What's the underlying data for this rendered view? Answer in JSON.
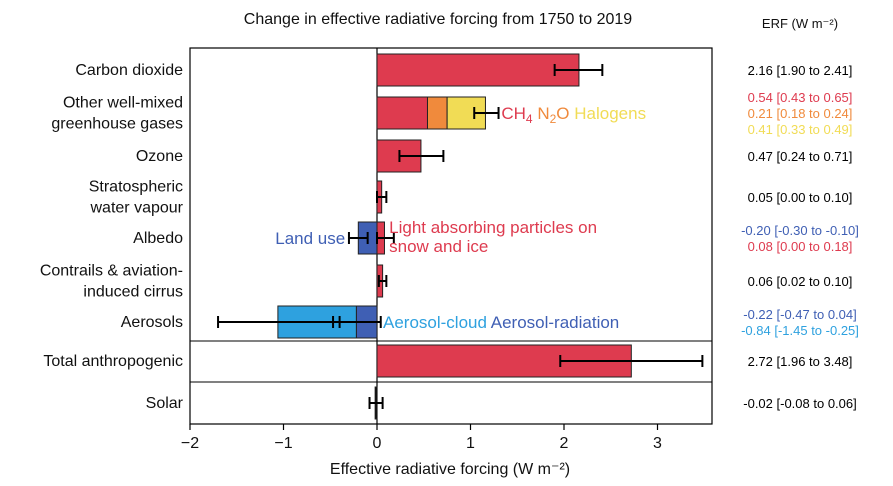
{
  "chart_data": {
    "type": "bar",
    "title": "Change in effective radiative forcing from 1750 to 2019",
    "xlabel": "Effective radiative forcing (W m⁻²)",
    "xlim": [
      -2,
      3.6
    ],
    "xticks": [
      -2,
      -1,
      0,
      1,
      2,
      3
    ],
    "xtick_labels": [
      "−2",
      "−1",
      "0",
      "1",
      "2",
      "3"
    ],
    "erf_header": "ERF (W m⁻²)",
    "colors": {
      "red": "#de3b4f",
      "orange": "#f08a3c",
      "yellow": "#f1dc55",
      "blue": "#3f5fb4",
      "lightblue": "#2ea1df",
      "black": "#000000"
    },
    "categories": [
      {
        "label": [
          "Carbon dioxide"
        ],
        "segments": [
          {
            "from": 0,
            "to": 2.16,
            "color": "red"
          }
        ],
        "error": {
          "center": 2.16,
          "low": 1.9,
          "high": 2.41
        },
        "erf": [
          {
            "text": "2.16 [1.90 to 2.41]",
            "color": "black"
          }
        ]
      },
      {
        "label": [
          "Other well-mixed",
          "greenhouse gases"
        ],
        "segments": [
          {
            "from": 0,
            "to": 0.54,
            "color": "red"
          },
          {
            "from": 0.54,
            "to": 0.75,
            "color": "orange"
          },
          {
            "from": 0.75,
            "to": 1.16,
            "color": "yellow"
          }
        ],
        "error": {
          "center": 1.16,
          "low": 1.04,
          "high": 1.3
        },
        "erf": [
          {
            "text": "0.54 [0.43 to 0.65]",
            "color": "red"
          },
          {
            "text": "0.21 [0.18 to 0.24]",
            "color": "orange"
          },
          {
            "text": "0.41 [0.33 to 0.49]",
            "color": "yellow"
          }
        ]
      },
      {
        "label": [
          "Ozone"
        ],
        "segments": [
          {
            "from": 0,
            "to": 0.47,
            "color": "red"
          }
        ],
        "error": {
          "center": 0.47,
          "low": 0.24,
          "high": 0.71
        },
        "erf": [
          {
            "text": "0.47 [0.24 to 0.71]",
            "color": "black"
          }
        ]
      },
      {
        "label": [
          "Stratospheric",
          "water vapour"
        ],
        "segments": [
          {
            "from": 0,
            "to": 0.05,
            "color": "red"
          }
        ],
        "error": {
          "center": 0.05,
          "low": 0.0,
          "high": 0.1
        },
        "erf": [
          {
            "text": "0.05 [0.00 to 0.10]",
            "color": "black"
          }
        ]
      },
      {
        "label": [
          "Albedo"
        ],
        "segments": [
          {
            "from": -0.2,
            "to": 0,
            "color": "blue"
          },
          {
            "from": 0,
            "to": 0.08,
            "color": "red"
          }
        ],
        "errors": [
          {
            "center": -0.2,
            "low": -0.3,
            "high": -0.1
          },
          {
            "center": 0.08,
            "low": 0.0,
            "high": 0.18
          }
        ],
        "erf": [
          {
            "text": "-0.20 [-0.30 to -0.10]",
            "color": "blue"
          },
          {
            "text": "0.08 [0.00 to 0.18]",
            "color": "red"
          }
        ]
      },
      {
        "label": [
          "Contrails & aviation-",
          "induced cirrus"
        ],
        "segments": [
          {
            "from": 0,
            "to": 0.06,
            "color": "red"
          }
        ],
        "error": {
          "center": 0.06,
          "low": 0.02,
          "high": 0.1
        },
        "erf": [
          {
            "text": "0.06 [0.02 to 0.10]",
            "color": "black"
          }
        ]
      },
      {
        "label": [
          "Aerosols"
        ],
        "segments": [
          {
            "from": -1.06,
            "to": -0.22,
            "color": "lightblue"
          },
          {
            "from": -0.22,
            "to": 0,
            "color": "blue"
          }
        ],
        "errors": [
          {
            "center": -0.22,
            "low": -0.47,
            "high": 0.04
          },
          {
            "center": -1.06,
            "low": -1.7,
            "high": -0.4
          }
        ],
        "erf": [
          {
            "text": "-0.22 [-0.47 to 0.04]",
            "color": "blue"
          },
          {
            "text": "-0.84 [-1.45 to -0.25]",
            "color": "lightblue"
          }
        ]
      },
      {
        "label": [
          "Total anthropogenic"
        ],
        "segments": [
          {
            "from": 0,
            "to": 2.72,
            "color": "red"
          }
        ],
        "error": {
          "center": 2.72,
          "low": 1.96,
          "high": 3.48
        },
        "erf": [
          {
            "text": "2.72 [1.96 to 3.48]",
            "color": "black"
          }
        ]
      },
      {
        "label": [
          "Solar"
        ],
        "segments": [
          {
            "from": -0.02,
            "to": 0,
            "color": "black"
          }
        ],
        "error": {
          "center": -0.02,
          "low": -0.08,
          "high": 0.06
        },
        "erf": [
          {
            "text": "-0.02 [-0.08 to 0.06]",
            "color": "black"
          }
        ]
      }
    ],
    "annotations": [
      {
        "row": 1,
        "parts": [
          {
            "text": "CH",
            "color": "red"
          },
          {
            "text": "4",
            "color": "red",
            "sub": true
          },
          {
            "text": " N",
            "color": "orange"
          },
          {
            "text": "2",
            "color": "orange",
            "sub": true
          },
          {
            "text": "O",
            "color": "orange"
          },
          {
            "text": " Halogens",
            "color": "yellow"
          }
        ]
      },
      {
        "row": 4,
        "lines": [
          "Light absorbing particles on",
          "snow and ice"
        ],
        "color": "red",
        "side": "right"
      },
      {
        "row": 4,
        "lines": [
          "Land use"
        ],
        "color": "blue",
        "side": "left"
      },
      {
        "row": 6,
        "parts": [
          {
            "text": "Aerosol-cloud",
            "color": "lightblue"
          },
          {
            "text": "   Aerosol-radiation",
            "color": "blue"
          }
        ]
      }
    ]
  }
}
